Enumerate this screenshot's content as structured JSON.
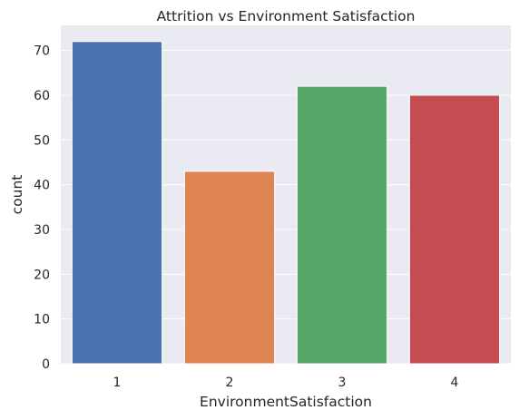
{
  "chart_data": {
    "type": "bar",
    "title": "Attrition vs Environment Satisfaction",
    "xlabel": "EnvironmentSatisfaction",
    "ylabel": "count",
    "categories": [
      "1",
      "2",
      "3",
      "4"
    ],
    "values": [
      72,
      43,
      62,
      60
    ],
    "colors": [
      "#4c72b0",
      "#dd8452",
      "#55a868",
      "#c44e52"
    ],
    "ylim": [
      0,
      75.6
    ],
    "yticks": [
      0,
      10,
      20,
      30,
      40,
      50,
      60,
      70
    ],
    "grid": true,
    "background": "#eaeaf2",
    "grid_color": "#ffffff"
  }
}
